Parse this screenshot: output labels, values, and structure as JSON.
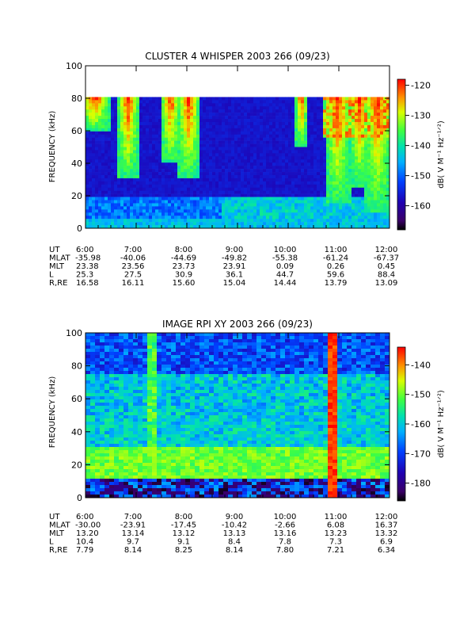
{
  "chart_data": [
    {
      "type": "heatmap",
      "title": "CLUSTER 4 WHISPER 2003 266 (09/23)",
      "ylabel": "FREQUENCY (kHz)",
      "ylim": [
        0,
        100
      ],
      "yticks": [
        "0",
        "20",
        "40",
        "60",
        "80",
        "100"
      ],
      "xlim_hours": [
        6,
        12
      ],
      "xticks": [
        "6:00",
        "7:00",
        "8:00",
        "9:00",
        "10:00",
        "11:00",
        "12:00"
      ],
      "colorbar": {
        "label": "dB( V M⁻¹ Hz⁻¹ᐟ²)",
        "range": [
          -168,
          -118
        ],
        "ticks": [
          "-120",
          "-130",
          "-140",
          "-150",
          "-160"
        ]
      },
      "data_ceiling_khz": 80,
      "ephemeris": [
        {
          "label": "UT",
          "values": [
            "6:00",
            "7:00",
            "8:00",
            "9:00",
            "10:00",
            "11:00",
            "12:00"
          ]
        },
        {
          "label": "MLAT",
          "values": [
            "-35.98",
            "-40.06",
            "-44.69",
            "-49.82",
            "-55.38",
            "-61.24",
            "-67.37"
          ]
        },
        {
          "label": "MLT",
          "values": [
            "23.38",
            "23.56",
            "23.73",
            "23.91",
            "0.09",
            "0.26",
            "0.45"
          ]
        },
        {
          "label": "L",
          "values": [
            "25.3",
            "27.5",
            "30.9",
            "36.1",
            "44.7",
            "59.6",
            "88.4"
          ]
        },
        {
          "label": "R,RE",
          "values": [
            "16.58",
            "16.11",
            "15.60",
            "15.04",
            "14.44",
            "13.79",
            "13.09"
          ]
        }
      ]
    },
    {
      "type": "heatmap",
      "title": "IMAGE RPI XY 2003 266 (09/23)",
      "ylabel": "FREQUENCY (kHz)",
      "ylim": [
        0,
        100
      ],
      "yticks": [
        "0",
        "20",
        "40",
        "60",
        "80",
        "100"
      ],
      "xlim_hours": [
        6,
        12
      ],
      "xticks": [
        "6:00",
        "7:00",
        "8:00",
        "9:00",
        "10:00",
        "11:00",
        "12:00"
      ],
      "colorbar": {
        "label": "dB( V M⁻¹ Hz⁻¹ᐟ²)",
        "range": [
          -186,
          -134
        ],
        "ticks": [
          "-140",
          "-150",
          "-160",
          "-170",
          "-180"
        ]
      },
      "ephemeris": [
        {
          "label": "UT",
          "values": [
            "6:00",
            "7:00",
            "8:00",
            "9:00",
            "10:00",
            "11:00",
            "12:00"
          ]
        },
        {
          "label": "MLAT",
          "values": [
            "-30.00",
            "-23.91",
            "-17.45",
            "-10.42",
            "-2.66",
            "6.08",
            "16.37"
          ]
        },
        {
          "label": "MLT",
          "values": [
            "13.20",
            "13.14",
            "13.12",
            "13.13",
            "13.16",
            "13.23",
            "13.32"
          ]
        },
        {
          "label": "L",
          "values": [
            "10.4",
            "9.7",
            "9.1",
            "8.4",
            "7.8",
            "7.3",
            "6.9"
          ]
        },
        {
          "label": "R,RE",
          "values": [
            "7.79",
            "8.14",
            "8.25",
            "8.14",
            "7.80",
            "7.21",
            "6.34"
          ]
        }
      ]
    }
  ]
}
